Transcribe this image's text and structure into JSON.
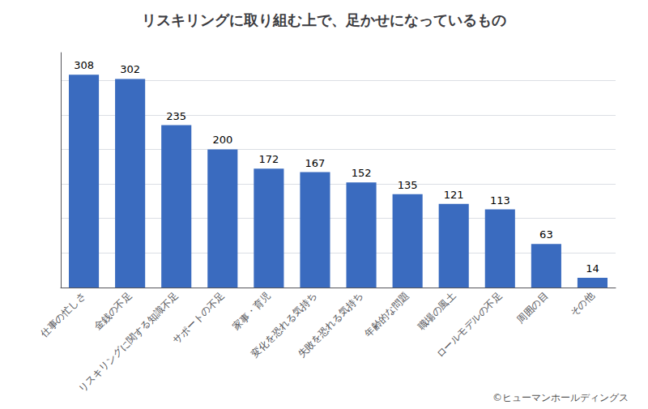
{
  "chart_data": {
    "type": "bar",
    "title": "リスキリングに取り組む上で、足かせになっているもの",
    "categories": [
      "仕事の忙しさ",
      "金銭の不足",
      "リスキリングに関する知識不足",
      "サポートの不足",
      "家事・育児",
      "変化を恐れる気持ち",
      "失敗を恐れる気持ち",
      "年齢的な問題",
      "職場の風土",
      "ロールモデルの不足",
      "周囲の目",
      "その他"
    ],
    "values": [
      308,
      302,
      235,
      200,
      172,
      167,
      152,
      135,
      121,
      113,
      63,
      14
    ],
    "color": "#3a6bbf",
    "ylim": [
      0,
      340
    ],
    "yticks": [
      50,
      100,
      150,
      200,
      250,
      300
    ],
    "grid": true,
    "tick_labels": "x",
    "data_labels": true,
    "annotations": [
      "©ヒューマンホールディングス"
    ]
  }
}
